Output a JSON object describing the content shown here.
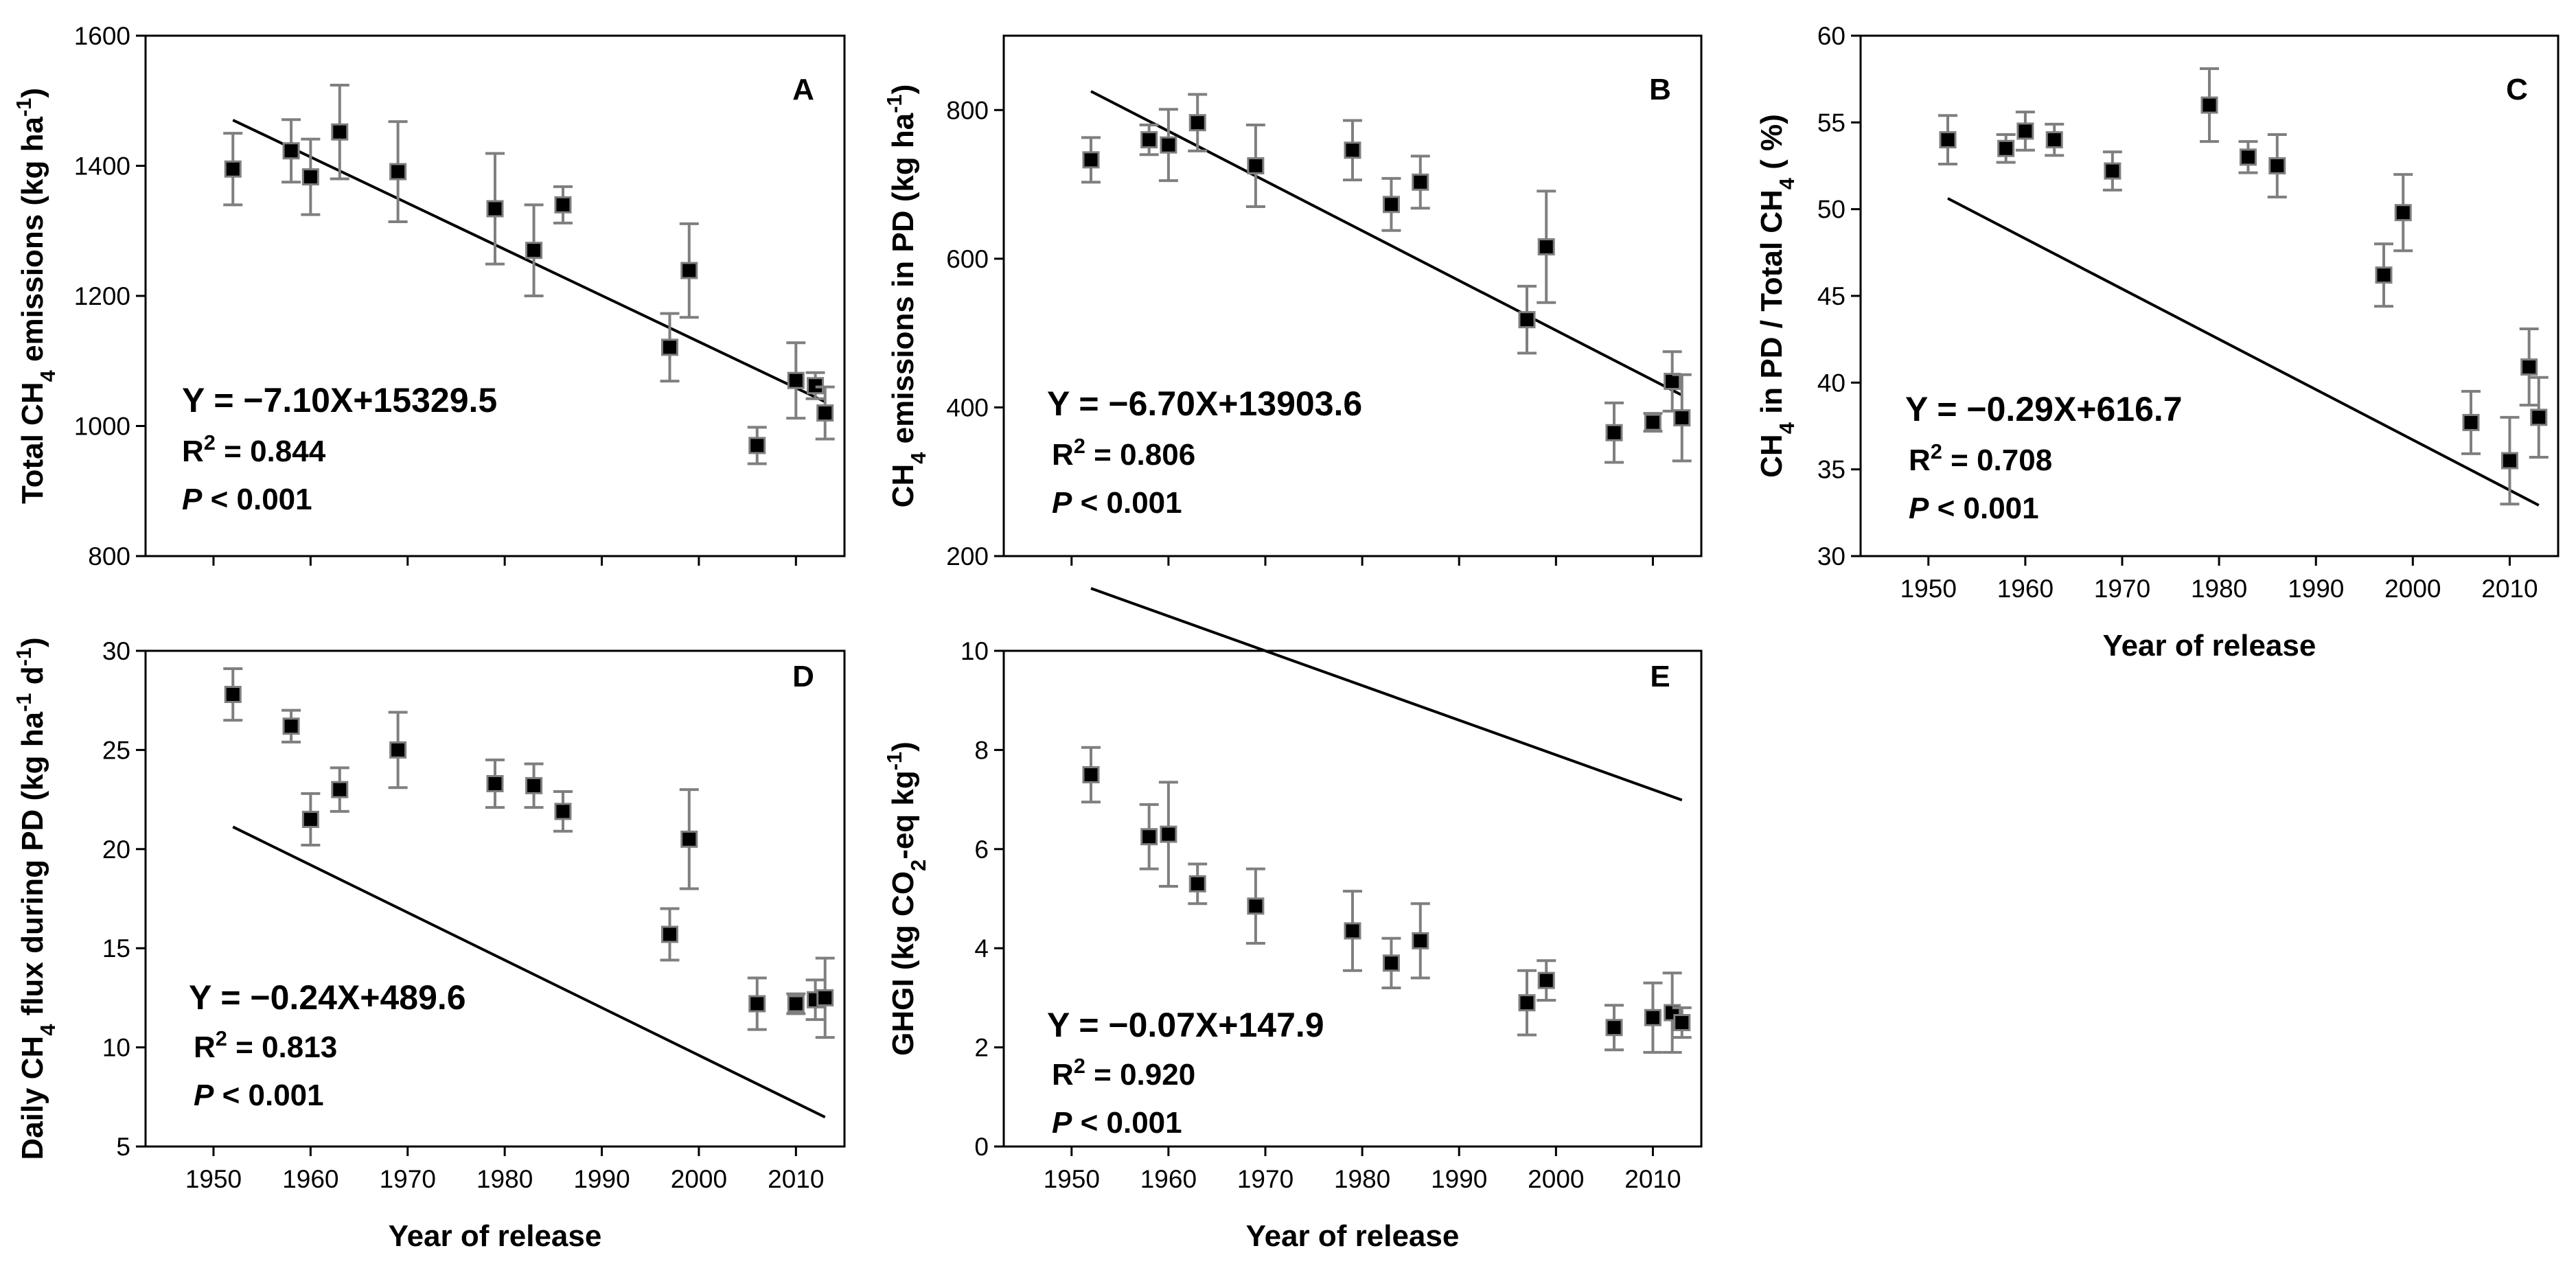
{
  "chart_data": [
    {
      "id": "A",
      "type": "scatter",
      "panel_label": "A",
      "xlabel": "",
      "ylabel": "Total CH₄ emissions (kg ha⁻¹)",
      "xlim": [
        1943,
        2015
      ],
      "xticks": [
        1950,
        1960,
        1970,
        1980,
        1990,
        2000,
        2010
      ],
      "show_xtick_labels": false,
      "ylim": [
        800,
        1600
      ],
      "yticks": [
        800,
        1000,
        1200,
        1400,
        1600
      ],
      "ytick_labels": [
        "800",
        "1000",
        "1200",
        "1400",
        "1600"
      ],
      "points": [
        {
          "x": 1952,
          "y": 1395,
          "err": 55
        },
        {
          "x": 1958,
          "y": 1423,
          "err": 48
        },
        {
          "x": 1960,
          "y": 1383,
          "err": 58
        },
        {
          "x": 1963,
          "y": 1452,
          "err": 72
        },
        {
          "x": 1969,
          "y": 1391,
          "err": 77
        },
        {
          "x": 1979,
          "y": 1334,
          "err": 85
        },
        {
          "x": 1983,
          "y": 1270,
          "err": 70
        },
        {
          "x": 1986,
          "y": 1340,
          "err": 28
        },
        {
          "x": 1997,
          "y": 1121,
          "err": 52
        },
        {
          "x": 1999,
          "y": 1239,
          "err": 72
        },
        {
          "x": 2006,
          "y": 970,
          "err": 28
        },
        {
          "x": 2010,
          "y": 1070,
          "err": 58
        },
        {
          "x": 2012,
          "y": 1062,
          "err": 20
        },
        {
          "x": 2013,
          "y": 1020,
          "err": 40
        }
      ],
      "fit": {
        "slope": -7.1,
        "intercept": 15329.5,
        "x_range": [
          1952,
          2013
        ]
      },
      "equation": "Y = −7.10X+15329.5",
      "r2_label": "R",
      "r2_sup": "2",
      "r2_value": " = 0.844",
      "p_label": "P",
      "p_value": " < 0.001"
    },
    {
      "id": "B",
      "type": "scatter",
      "panel_label": "B",
      "xlabel": "",
      "ylabel": "CH₄ emissions in PD (kg ha⁻¹)",
      "xlim": [
        1943,
        2015
      ],
      "xticks": [
        1950,
        1960,
        1970,
        1980,
        1990,
        2000,
        2010
      ],
      "show_xtick_labels": false,
      "ylim": [
        200,
        900
      ],
      "yticks": [
        200,
        400,
        600,
        800
      ],
      "ytick_labels": [
        "200",
        "400",
        "600",
        "800"
      ],
      "points": [
        {
          "x": 1952,
          "y": 733,
          "err": 30
        },
        {
          "x": 1958,
          "y": 760,
          "err": 20
        },
        {
          "x": 1960,
          "y": 753,
          "err": 48
        },
        {
          "x": 1963,
          "y": 783,
          "err": 38
        },
        {
          "x": 1969,
          "y": 725,
          "err": 55
        },
        {
          "x": 1979,
          "y": 746,
          "err": 40
        },
        {
          "x": 1983,
          "y": 673,
          "err": 35
        },
        {
          "x": 1986,
          "y": 703,
          "err": 35
        },
        {
          "x": 1997,
          "y": 518,
          "err": 45
        },
        {
          "x": 1999,
          "y": 616,
          "err": 75
        },
        {
          "x": 2006,
          "y": 366,
          "err": 40
        },
        {
          "x": 2010,
          "y": 380,
          "err": 12
        },
        {
          "x": 2012,
          "y": 435,
          "err": 40
        },
        {
          "x": 2013,
          "y": 386,
          "err": 58
        }
      ],
      "fit": {
        "slope": -6.7,
        "intercept": 13903.6,
        "x_range": [
          1952,
          2013
        ]
      },
      "equation": "Y = −6.70X+13903.6",
      "r2_label": "R",
      "r2_sup": "2",
      "r2_value": " = 0.806",
      "p_label": "P",
      "p_value": " < 0.001"
    },
    {
      "id": "C",
      "type": "scatter",
      "panel_label": "C",
      "xlabel": "Year of release",
      "ylabel": "CH₄ in PD / Total CH₄ ( %)",
      "xlim": [
        1943,
        2015
      ],
      "xticks": [
        1950,
        1960,
        1970,
        1980,
        1990,
        2000,
        2010
      ],
      "show_xtick_labels": true,
      "ylim": [
        30,
        60
      ],
      "yticks": [
        30,
        35,
        40,
        45,
        50,
        55,
        60
      ],
      "ytick_labels": [
        "30",
        "35",
        "40",
        "45",
        "50",
        "55",
        "60"
      ],
      "points": [
        {
          "x": 1952,
          "y": 54.0,
          "err": 1.4
        },
        {
          "x": 1958,
          "y": 53.5,
          "err": 0.8
        },
        {
          "x": 1960,
          "y": 54.5,
          "err": 1.1
        },
        {
          "x": 1963,
          "y": 54.0,
          "err": 0.9
        },
        {
          "x": 1969,
          "y": 52.2,
          "err": 1.1
        },
        {
          "x": 1979,
          "y": 56.0,
          "err": 2.1
        },
        {
          "x": 1983,
          "y": 53.0,
          "err": 0.9
        },
        {
          "x": 1986,
          "y": 52.5,
          "err": 1.8
        },
        {
          "x": 1997,
          "y": 46.2,
          "err": 1.8
        },
        {
          "x": 1999,
          "y": 49.8,
          "err": 2.2
        },
        {
          "x": 2006,
          "y": 37.7,
          "err": 1.8
        },
        {
          "x": 2010,
          "y": 35.5,
          "err": 2.5
        },
        {
          "x": 2012,
          "y": 40.9,
          "err": 2.2
        },
        {
          "x": 2013,
          "y": 38.0,
          "err": 2.3
        }
      ],
      "fit": {
        "slope": -0.29,
        "intercept": 616.7,
        "x_range": [
          1952,
          2013
        ]
      },
      "equation": "Y = −0.29X+616.7",
      "r2_label": "R",
      "r2_sup": "2",
      "r2_value": " = 0.708",
      "p_label": "P",
      "p_value": " < 0.001"
    },
    {
      "id": "D",
      "type": "scatter",
      "panel_label": "D",
      "xlabel": "Year of release",
      "ylabel": "Daily CH₄ flux during PD (kg ha⁻¹ d⁻¹)",
      "xlim": [
        1943,
        2015
      ],
      "xticks": [
        1950,
        1960,
        1970,
        1980,
        1990,
        2000,
        2010
      ],
      "show_xtick_labels": true,
      "ylim": [
        5,
        30
      ],
      "yticks": [
        5,
        10,
        15,
        20,
        25,
        30
      ],
      "ytick_labels": [
        "5",
        "10",
        "15",
        "20",
        "25",
        "30"
      ],
      "points": [
        {
          "x": 1952,
          "y": 27.8,
          "err": 1.3
        },
        {
          "x": 1958,
          "y": 26.2,
          "err": 0.8
        },
        {
          "x": 1960,
          "y": 21.5,
          "err": 1.3
        },
        {
          "x": 1963,
          "y": 23.0,
          "err": 1.1
        },
        {
          "x": 1969,
          "y": 25.0,
          "err": 1.9
        },
        {
          "x": 1979,
          "y": 23.3,
          "err": 1.2
        },
        {
          "x": 1983,
          "y": 23.2,
          "err": 1.1
        },
        {
          "x": 1986,
          "y": 21.9,
          "err": 1.0
        },
        {
          "x": 1997,
          "y": 15.7,
          "err": 1.3
        },
        {
          "x": 1999,
          "y": 20.5,
          "err": 2.5
        },
        {
          "x": 2006,
          "y": 12.2,
          "err": 1.3
        },
        {
          "x": 2010,
          "y": 12.2,
          "err": 0.5
        },
        {
          "x": 2012,
          "y": 12.4,
          "err": 1.0
        },
        {
          "x": 2013,
          "y": 12.5,
          "err": 2.0
        }
      ],
      "fit": {
        "slope": -0.24,
        "intercept": 489.6,
        "x_range": [
          1952,
          2013
        ]
      },
      "equation": "Y = −0.24X+489.6",
      "r2_label": "R",
      "r2_sup": "2",
      "r2_value": " = 0.813",
      "p_label": "P",
      "p_value": " < 0.001"
    },
    {
      "id": "E",
      "type": "scatter",
      "panel_label": "E",
      "xlabel": "Year of release",
      "ylabel": "GHGI (kg CO₂-eq kg⁻¹)",
      "xlim": [
        1943,
        2015
      ],
      "xticks": [
        1950,
        1960,
        1970,
        1980,
        1990,
        2000,
        2010
      ],
      "show_xtick_labels": true,
      "ylim": [
        0,
        10
      ],
      "yticks": [
        0,
        2,
        4,
        6,
        8,
        10
      ],
      "ytick_labels": [
        "0",
        "2",
        "4",
        "6",
        "8",
        "10"
      ],
      "points": [
        {
          "x": 1952,
          "y": 7.5,
          "err": 0.55
        },
        {
          "x": 1958,
          "y": 6.25,
          "err": 0.65
        },
        {
          "x": 1960,
          "y": 6.3,
          "err": 1.05
        },
        {
          "x": 1963,
          "y": 5.3,
          "err": 0.4
        },
        {
          "x": 1969,
          "y": 4.85,
          "err": 0.75
        },
        {
          "x": 1979,
          "y": 4.35,
          "err": 0.8
        },
        {
          "x": 1983,
          "y": 3.7,
          "err": 0.5
        },
        {
          "x": 1986,
          "y": 4.15,
          "err": 0.75
        },
        {
          "x": 1997,
          "y": 2.9,
          "err": 0.65
        },
        {
          "x": 1999,
          "y": 3.35,
          "err": 0.4
        },
        {
          "x": 2006,
          "y": 2.4,
          "err": 0.45
        },
        {
          "x": 2010,
          "y": 2.6,
          "err": 0.7
        },
        {
          "x": 2012,
          "y": 2.7,
          "err": 0.8
        },
        {
          "x": 2013,
          "y": 2.5,
          "err": 0.3
        }
      ],
      "fit": {
        "slope": -0.07,
        "intercept": 147.9,
        "x_range": [
          1952,
          2013
        ]
      },
      "equation": "Y = −0.07X+147.9",
      "r2_label": "R",
      "r2_sup": "2",
      "r2_value": " = 0.920",
      "p_label": "P",
      "p_value": " < 0.001"
    }
  ]
}
